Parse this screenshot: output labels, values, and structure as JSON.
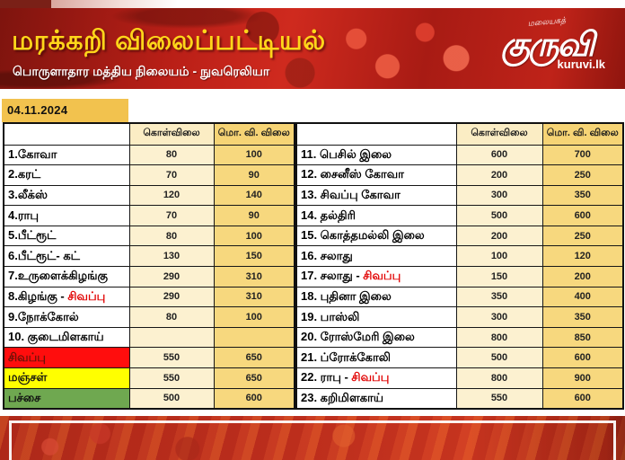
{
  "banner": {
    "title": "மரக்கறி விலைப்பட்டியல்",
    "subtitle": "பொருளாதார மத்திய நிலையம் - நுவரெலியா",
    "logo": {
      "tagline": "மலையகத்",
      "name": "குருவி",
      "site": "kuruvi.lk"
    }
  },
  "date": "04.11.2024",
  "colors": {
    "banner_red": "#b91f17",
    "title_yellow": "#ffd61a",
    "date_gold": "#f2c24e",
    "buy_col_cream": "#fcf1d0",
    "sell_col_gold": "#f7d87e",
    "red_variant_text": "#e10000",
    "red_row_bg": "#ff0d0d",
    "yellow_row_bg": "#ffff00",
    "green_row_bg": "#6fa850"
  },
  "table": {
    "col_headers": [
      "கொள்விலை",
      "மொ. வி. விலை"
    ],
    "left_rows": [
      {
        "name": "1.கோவா",
        "buy": "80",
        "sell": "100"
      },
      {
        "name": "2.கரட்",
        "buy": "70",
        "sell": "90"
      },
      {
        "name": "3.லீக்ஸ்",
        "buy": "120",
        "sell": "140"
      },
      {
        "name": "4.ராபு",
        "buy": "70",
        "sell": "90"
      },
      {
        "name": "5.பீட்ரூட்",
        "buy": "80",
        "sell": "100"
      },
      {
        "name": "6.பீட்ரூட்- கட்",
        "buy": "130",
        "sell": "150"
      },
      {
        "name": "7.உருளைக்கிழங்கு",
        "buy": "290",
        "sell": "310"
      },
      {
        "name": "8.கிழங்கு - ",
        "red": "சிவப்பு",
        "buy": "290",
        "sell": "310"
      },
      {
        "name": "9.நோக்கோல்",
        "buy": "80",
        "sell": "100"
      },
      {
        "name": "10. குடைமிளகாய்",
        "buy": "",
        "sell": ""
      },
      {
        "name": "சிவப்பு",
        "bg": "#ff0d0d",
        "fg": "#6b1208",
        "buy": "550",
        "sell": "650"
      },
      {
        "name": "மஞ்சள்",
        "bg": "#ffff00",
        "fg": "#111111",
        "buy": "550",
        "sell": "650"
      },
      {
        "name": "பச்சை",
        "bg": "#6fa850",
        "fg": "#111111",
        "buy": "500",
        "sell": "600"
      }
    ],
    "right_rows": [
      {
        "name": "11. பெசில் இலை",
        "buy": "600",
        "sell": "700"
      },
      {
        "name": "12. சைனீஸ் கோவா",
        "buy": "200",
        "sell": "250"
      },
      {
        "name": "13. சிவப்பு கோவா",
        "buy": "300",
        "sell": "350"
      },
      {
        "name": "14. தல்திரி",
        "buy": "500",
        "sell": "600"
      },
      {
        "name": "15. கொத்தமல்லி இலை",
        "buy": "200",
        "sell": "250"
      },
      {
        "name": "16. சலாது",
        "buy": "100",
        "sell": "120"
      },
      {
        "name": "17. சலாது - ",
        "red": "சிவப்பு",
        "buy": "150",
        "sell": "200"
      },
      {
        "name": "18. புதினா இலை",
        "buy": "350",
        "sell": "400"
      },
      {
        "name": "19. பாஸ்லி",
        "buy": "300",
        "sell": "350"
      },
      {
        "name": "20. ரோஸ்மேரி இலை",
        "buy": "800",
        "sell": "850"
      },
      {
        "name": "21. ப்ரோக்கோலி",
        "buy": "500",
        "sell": "600"
      },
      {
        "name": "22. ராபு - ",
        "red": "சிவப்பு",
        "buy": "800",
        "sell": "900"
      },
      {
        "name": "23. கறிமிளகாய்",
        "buy": "550",
        "sell": "600"
      }
    ]
  }
}
